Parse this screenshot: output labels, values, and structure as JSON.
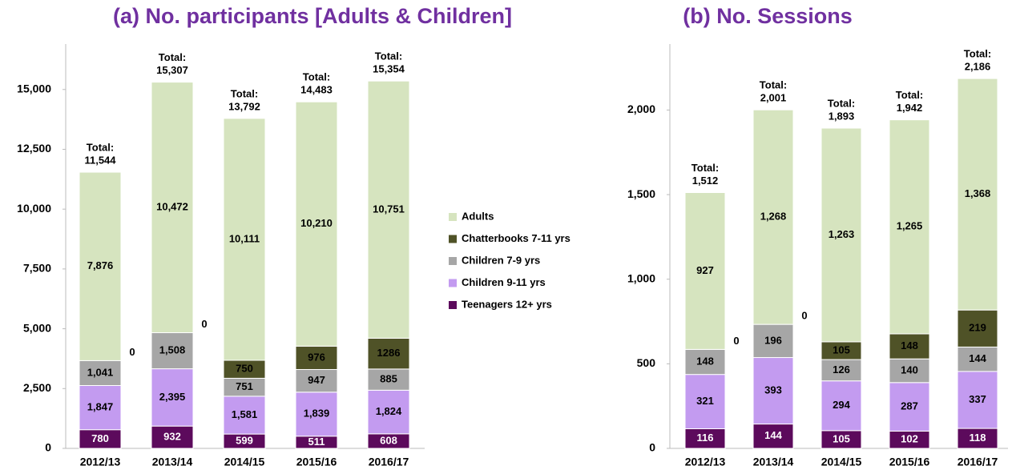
{
  "chart_data": [
    {
      "type": "stacked_bar",
      "title": "(a) No. participants [Adults & Children]",
      "categories": [
        "2012/13",
        "2013/14",
        "2014/15",
        "2015/16",
        "2016/17"
      ],
      "series": [
        {
          "name": "Teenagers 12+ yrs",
          "color": "#5c0a5c",
          "values": [
            780,
            932,
            599,
            511,
            608
          ]
        },
        {
          "name": "Children 9-11 yrs",
          "color": "#c39bf0",
          "values": [
            1847,
            2395,
            1581,
            1839,
            1824
          ],
          "value_labels": [
            "1,847",
            "2,395",
            "1,581",
            "1,839",
            "1,824"
          ]
        },
        {
          "name": "Children 7-9 yrs",
          "color": "#a6a6a6",
          "values": [
            1041,
            1508,
            751,
            947,
            885
          ],
          "value_labels": [
            "1,041",
            "1,508",
            "751",
            "947",
            "885"
          ]
        },
        {
          "name": "Chatterbooks 7-11 yrs",
          "color": "#4f5227",
          "values": [
            0,
            0,
            750,
            976,
            1286
          ]
        },
        {
          "name": "Adults",
          "color": "#d6e4bf",
          "values": [
            7876,
            10472,
            10111,
            10210,
            10751
          ],
          "value_labels": [
            "7,876",
            "10,472",
            "10,111",
            "10,210",
            "10,751"
          ]
        }
      ],
      "total_label": "Total:",
      "totals": {
        "values": [
          11544,
          15307,
          13792,
          14483,
          15354
        ],
        "value_labels": [
          "11,544",
          "15,307",
          "13,792",
          "14,483",
          "15,354"
        ]
      },
      "ylim": [
        0,
        16900
      ],
      "yticks": [
        0,
        {
          "value": 2500,
          "label": "2,500"
        },
        {
          "value": 5000,
          "label": "5,000"
        },
        {
          "value": 7500,
          "label": "7,500"
        },
        {
          "value": 10000,
          "label": "10,000"
        },
        {
          "value": 12500,
          "label": "12,500"
        },
        {
          "value": 15000,
          "label": "15,000"
        }
      ],
      "legend": "right"
    },
    {
      "type": "stacked_bar",
      "title": "(b) No. Sessions",
      "categories": [
        "2012/13",
        "2013/14",
        "2014/15",
        "2015/16",
        "2016/17"
      ],
      "series": [
        {
          "name": "Teenagers 12+ yrs",
          "color": "#5c0a5c",
          "values": [
            116,
            144,
            105,
            102,
            118
          ]
        },
        {
          "name": "Children 9-11 yrs",
          "color": "#c39bf0",
          "values": [
            321,
            393,
            294,
            287,
            337
          ]
        },
        {
          "name": "Children 7-9 yrs",
          "color": "#a6a6a6",
          "values": [
            148,
            196,
            126,
            140,
            144
          ]
        },
        {
          "name": "Chatterbooks 7-11 yrs",
          "color": "#4f5227",
          "values": [
            0,
            0,
            105,
            148,
            219
          ]
        },
        {
          "name": "Adults",
          "color": "#d6e4bf",
          "values": [
            927,
            1268,
            1263,
            1265,
            1368
          ],
          "value_labels": [
            "927",
            "1,268",
            "1,263",
            "1,265",
            "1,368"
          ]
        }
      ],
      "total_label": "Total:",
      "totals": {
        "values": [
          1512,
          2001,
          1893,
          1942,
          2186
        ],
        "value_labels": [
          "1,512",
          "2,001",
          "1,893",
          "1,942",
          "2,186"
        ]
      },
      "ylim": [
        0,
        2390
      ],
      "yticks": [
        0,
        500,
        {
          "value": 1000,
          "label": "1,000"
        },
        {
          "value": 1500,
          "label": "1,500"
        },
        {
          "value": 2000,
          "label": "2,000"
        }
      ]
    }
  ]
}
